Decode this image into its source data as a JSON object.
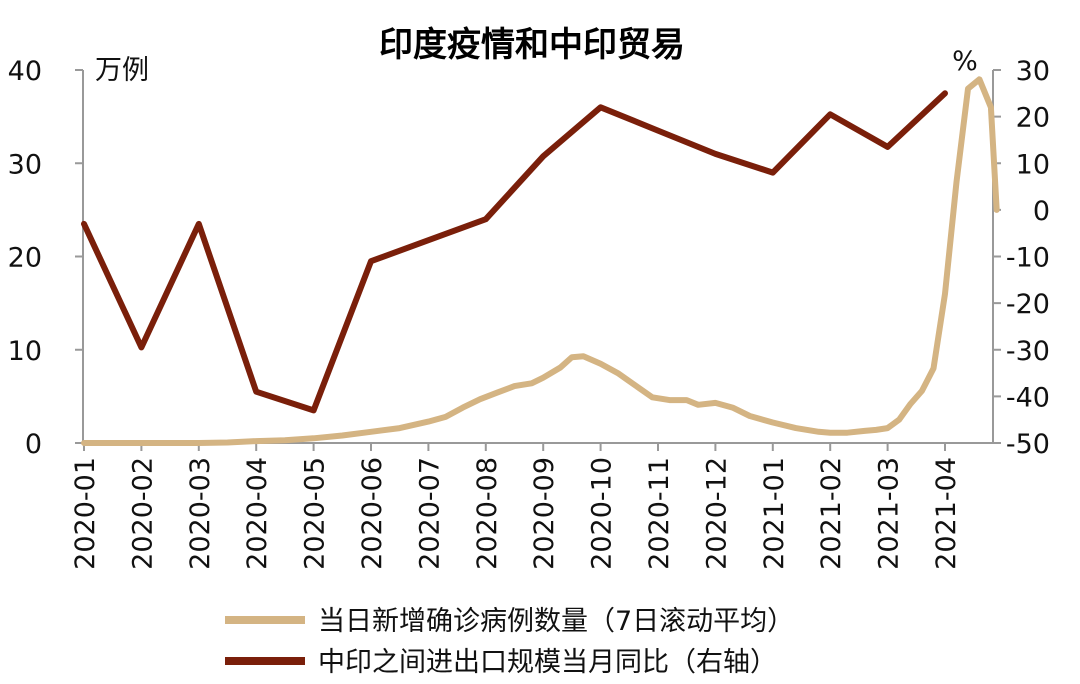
{
  "chart_data": {
    "type": "line",
    "title": "印度疫情和中印贸易",
    "left_axis": {
      "unit": "万例",
      "ylim": [
        0,
        40
      ],
      "ticks": [
        "0",
        "10",
        "20",
        "30",
        "40"
      ]
    },
    "right_axis": {
      "unit": "%",
      "ylim": [
        -50,
        30
      ],
      "ticks": [
        "-50",
        "-40",
        "-30",
        "-20",
        "-10",
        "0",
        "10",
        "20",
        "30"
      ]
    },
    "categories": [
      "2020-01",
      "2020-02",
      "2020-03",
      "2020-04",
      "2020-05",
      "2020-06",
      "2020-07",
      "2020-08",
      "2020-09",
      "2020-10",
      "2020-11",
      "2020-12",
      "2021-01",
      "2021-02",
      "2021-03",
      "2021-04"
    ],
    "series": [
      {
        "name": "当日新增确诊病例数量（7日滚动平均）",
        "axis": "left",
        "color": "#d4b483",
        "x": [
          0,
          0.5,
          1,
          1.5,
          2,
          2.5,
          3,
          3.5,
          4,
          4.5,
          5,
          5.5,
          6,
          6.3,
          6.6,
          6.9,
          7.2,
          7.5,
          7.8,
          8.0,
          8.3,
          8.5,
          8.7,
          9.0,
          9.3,
          9.6,
          9.9,
          10.2,
          10.5,
          10.7,
          11.0,
          11.3,
          11.6,
          12.0,
          12.4,
          12.8,
          13.0,
          13.3,
          13.6,
          13.8,
          14.0,
          14.2,
          14.4,
          14.6,
          14.8,
          15.0,
          15.2,
          15.4,
          15.6,
          15.8,
          15.9
        ],
        "values": [
          0,
          0,
          0,
          0,
          0,
          0.05,
          0.2,
          0.3,
          0.5,
          0.8,
          1.2,
          1.6,
          2.3,
          2.8,
          3.8,
          4.7,
          5.4,
          6.1,
          6.4,
          7.0,
          8.1,
          9.2,
          9.3,
          8.5,
          7.5,
          6.2,
          4.9,
          4.6,
          4.6,
          4.1,
          4.3,
          3.8,
          2.9,
          2.2,
          1.6,
          1.2,
          1.1,
          1.1,
          1.3,
          1.4,
          1.6,
          2.5,
          4.2,
          5.6,
          8.0,
          16.0,
          28.0,
          38.0,
          39.0,
          36.0,
          25.0
        ]
      },
      {
        "name": "中印之间进出口规模当月同比（右轴）",
        "axis": "right",
        "color": "#7a1f0a",
        "x": [
          0,
          1,
          2,
          3,
          4,
          5,
          6,
          7,
          8,
          9,
          10,
          11,
          12,
          13,
          14,
          15
        ],
        "values": [
          -3,
          -29.5,
          -3,
          -39,
          -43,
          -11,
          -6.5,
          -2,
          11.5,
          22,
          17,
          12,
          8,
          20.5,
          13.5,
          25
        ]
      }
    ]
  }
}
